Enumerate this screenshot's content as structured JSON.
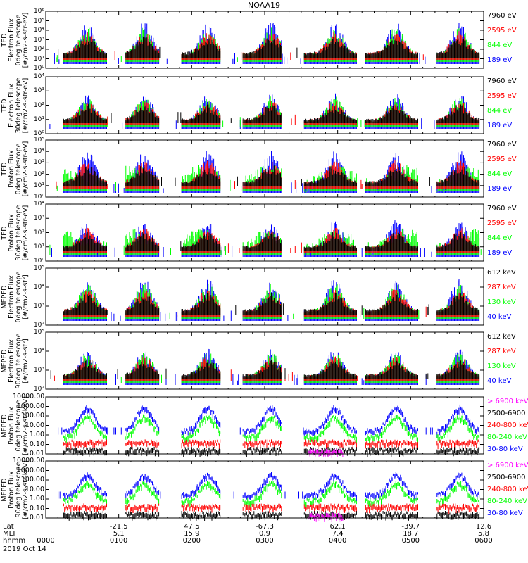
{
  "title": "NOAA19",
  "colors": {
    "red": "#ff0000",
    "green": "#00ff00",
    "blue": "#0000ff",
    "black": "#000000",
    "magenta": "#ff00ff",
    "axis": "#000000"
  },
  "panels": [
    {
      "ylabel": [
        "TED",
        "Electron Flux",
        "0deg telescope",
        "[#/cm2-s-str-eV]"
      ],
      "yticks": [
        "10⁶",
        "10⁵",
        "10⁴",
        "10³",
        "10²",
        "10¹",
        "10⁰"
      ],
      "legend": [
        {
          "label": "7960 eV",
          "color": "#000000"
        },
        {
          "label": "2595 eV",
          "color": "#ff0000"
        },
        {
          "label": "844 eV",
          "color": "#00ff00"
        },
        {
          "label": "189 eV",
          "color": "#0000ff"
        }
      ]
    },
    {
      "ylabel": [
        "TED",
        "Electron Flux",
        "30deg telescope",
        "[#/cm2-s-str-eV]"
      ],
      "yticks": [
        "10⁴",
        "10³",
        "10²",
        "10¹",
        "10⁰"
      ],
      "legend": [
        {
          "label": "7960 eV",
          "color": "#000000"
        },
        {
          "label": "2595 eV",
          "color": "#ff0000"
        },
        {
          "label": "844 eV",
          "color": "#00ff00"
        },
        {
          "label": "189 eV",
          "color": "#0000ff"
        }
      ]
    },
    {
      "ylabel": [
        "TED",
        "Proton Flux",
        "0deg telescope",
        "[#/cm2-s-str-eV]"
      ],
      "yticks": [
        "10⁵",
        "10⁴",
        "10³",
        "10²",
        "10¹",
        "10⁰"
      ],
      "legend": [
        {
          "label": "7960 eV",
          "color": "#000000"
        },
        {
          "label": "2595 eV",
          "color": "#ff0000"
        },
        {
          "label": "844 eV",
          "color": "#00ff00"
        },
        {
          "label": "189 eV",
          "color": "#0000ff"
        }
      ]
    },
    {
      "ylabel": [
        "TED",
        "Proton Flux",
        "30deg telescope",
        "[#/cm2-s-str-eV]"
      ],
      "yticks": [
        "10⁴",
        "10³",
        "10²",
        "10¹",
        "10⁰"
      ],
      "legend": [
        {
          "label": "7960 eV",
          "color": "#000000"
        },
        {
          "label": "2595 eV",
          "color": "#ff0000"
        },
        {
          "label": "844 eV",
          "color": "#00ff00"
        },
        {
          "label": "189 eV",
          "color": "#0000ff"
        }
      ]
    },
    {
      "ylabel": [
        "MEPED",
        "Electron Flux",
        "0deg telescope",
        "[#/cm2-s-str]"
      ],
      "yticks": [
        "10⁵",
        "10⁴",
        "10³",
        "10²"
      ],
      "legend": [
        {
          "label": "612 keV",
          "color": "#000000"
        },
        {
          "label": "287 keV",
          "color": "#ff0000"
        },
        {
          "label": "130 keV",
          "color": "#00ff00"
        },
        {
          "label": "40 keV",
          "color": "#0000ff"
        }
      ]
    },
    {
      "ylabel": [
        "MEPED",
        "Electron Flux",
        "90deg telescope",
        "[#/cm2-s-str]"
      ],
      "yticks": [
        "10⁵",
        "10⁴",
        "10³",
        "10²"
      ],
      "legend": [
        {
          "label": "612 keV",
          "color": "#000000"
        },
        {
          "label": "287 keV",
          "color": "#ff0000"
        },
        {
          "label": "130 keV",
          "color": "#00ff00"
        },
        {
          "label": "40 keV",
          "color": "#0000ff"
        }
      ]
    },
    {
      "ylabel": [
        "MEPED",
        "Proton Flux",
        "0deg telescope",
        "[#/cm2-s-str-keV]"
      ],
      "yticks": [
        "10000.00",
        "1000.00",
        "100.00",
        "10.00",
        "1.00",
        "0.10",
        "0.01"
      ],
      "legend": [
        {
          "label": "> 6900 keV",
          "color": "#ff00ff"
        },
        {
          "label": "2500-6900",
          "color": "#000000"
        },
        {
          "label": "240-800 keV",
          "color": "#ff0000"
        },
        {
          "label": "80-240 keV",
          "color": "#00ff00"
        },
        {
          "label": "30-80 keV",
          "color": "#0000ff"
        }
      ]
    },
    {
      "ylabel": [
        "MEPED",
        "Proton Flux",
        "90deg telescope",
        "[#/cm2-s-str-keV]"
      ],
      "yticks": [
        "10000.00",
        "1000.00",
        "100.00",
        "10.00",
        "1.00",
        "0.10",
        "0.01"
      ],
      "legend": [
        {
          "label": "> 6900 keV",
          "color": "#ff00ff"
        },
        {
          "label": "2500-6900",
          "color": "#000000"
        },
        {
          "label": "240-800 keV",
          "color": "#ff0000"
        },
        {
          "label": "80-240 keV",
          "color": "#00ff00"
        },
        {
          "label": "30-80 keV",
          "color": "#0000ff"
        }
      ]
    }
  ],
  "xaxis": {
    "row_labels": [
      "Lat",
      "MLT",
      "hhmm"
    ],
    "lat": [
      "-21.5",
      "47.5",
      "-67.3",
      "62.1",
      "-39.7",
      "12.6"
    ],
    "mlt": [
      "5.1",
      "15.9",
      "0.9",
      "7.4",
      "18.7",
      "5.8"
    ],
    "hhmm": [
      "0000",
      "0100",
      "0200",
      "0300",
      "0400",
      "0500",
      "0600"
    ],
    "date": "2019 Oct 14"
  },
  "chart_data": {
    "type": "line",
    "title": "NOAA19",
    "x_unit": "UT hhmm",
    "x_range": [
      "0000",
      "0600"
    ],
    "description_series": "Eight stacked time-series panels of particle flux vs. UT (2019 Oct 14, 0000-0600) for TED electron/proton (0deg and 30deg telescopes, 189/844/2595/7960 eV) and MEPED electron (40/130/287/612 keV) and proton (30-80, 80-240, 240-800, 2500-6900, >6900 keV) channels; log-scale y axes.",
    "passes_hhmm": [
      "0015-0050",
      "0105-0135",
      "0150-0225",
      "0240-0325",
      "0350-0430",
      "0440-0520",
      "0530-0600"
    ]
  }
}
